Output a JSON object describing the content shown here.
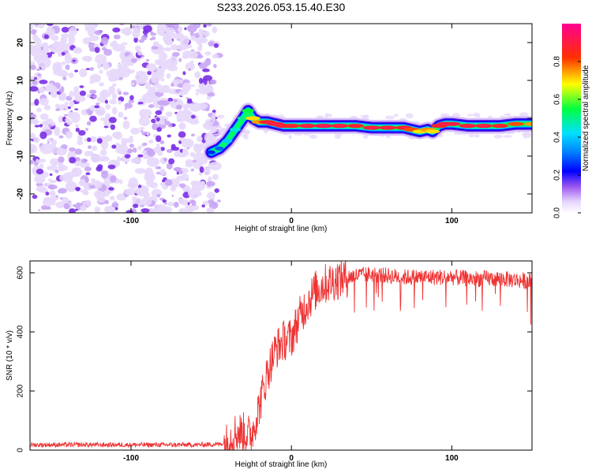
{
  "figure_title": "S233.2026.053.15.40.E30",
  "colors": {
    "jet_stops": [
      "#ffffff",
      "#f4e8ff",
      "#e0c6ff",
      "#c9a0ff",
      "#8a2be2",
      "#0000ff",
      "#00bfff",
      "#00ff00",
      "#ffff00",
      "#ff0000",
      "#ff00a0"
    ],
    "snr_line": "#ee3333",
    "axes": "#000000"
  },
  "chart_data": [
    {
      "type": "heatmap",
      "title": "",
      "xlabel": "Height of straight line (km)",
      "ylabel": "Frequency (Hz)",
      "xlim": [
        -163,
        150
      ],
      "ylim": [
        -25,
        25
      ],
      "xticks": [
        -100,
        0,
        100
      ],
      "yticks": [
        -20,
        -10,
        0,
        10,
        20
      ],
      "noise_region_x": [
        -163,
        -50
      ],
      "ridge": {
        "x": [
          -50,
          -45,
          -40,
          -35,
          -30,
          -27,
          -24,
          -20,
          -15,
          -10,
          -5,
          0,
          10,
          20,
          30,
          40,
          50,
          60,
          70,
          75,
          80,
          85,
          88,
          92,
          96,
          100,
          110,
          120,
          130,
          140,
          150
        ],
        "freq_hz": [
          -9,
          -8,
          -6,
          -3,
          0,
          2,
          0,
          -1,
          -1,
          -1.5,
          -2,
          -2,
          -2,
          -2,
          -2,
          -2,
          -2.5,
          -2.5,
          -2.5,
          -3,
          -3.5,
          -3,
          -3.5,
          -2,
          -1.5,
          -1.5,
          -2,
          -2,
          -2,
          -1.5,
          -1.5
        ],
        "amplitude": [
          0.25,
          0.3,
          0.4,
          0.45,
          0.5,
          0.55,
          0.7,
          0.75,
          0.85,
          0.9,
          0.9,
          0.85,
          0.9,
          0.95,
          0.9,
          0.85,
          0.9,
          0.9,
          0.85,
          0.8,
          0.7,
          0.75,
          0.7,
          0.85,
          0.9,
          0.9,
          0.9,
          0.9,
          0.85,
          0.8,
          0.75
        ]
      },
      "colorbar": {
        "label": "Normalized spectral amplitude",
        "range": [
          0,
          1
        ],
        "ticks": [
          0.0,
          0.2,
          0.4,
          0.6,
          0.8
        ],
        "tick_labels": [
          "0.0",
          "0.2",
          "0.4",
          "0.6",
          "0.8"
        ]
      }
    },
    {
      "type": "line",
      "title": "",
      "xlabel": "Height of straight line (km)",
      "ylabel": "SNR (10 * v/v)",
      "xlim": [
        -163,
        150
      ],
      "ylim": [
        0,
        640
      ],
      "xticks": [
        -100,
        0,
        100
      ],
      "yticks": [
        0,
        200,
        400,
        600
      ],
      "grid": false,
      "series": [
        {
          "name": "SNR",
          "x": [
            -163,
            -140,
            -120,
            -100,
            -80,
            -60,
            -45,
            -40,
            -35,
            -30,
            -25,
            -20,
            -15,
            -10,
            -5,
            0,
            5,
            10,
            15,
            20,
            25,
            30,
            40,
            50,
            60,
            70,
            80,
            90,
            100,
            110,
            120,
            130,
            140,
            150
          ],
          "values": [
            18,
            18,
            18,
            18,
            18,
            18,
            20,
            25,
            60,
            60,
            50,
            150,
            260,
            340,
            370,
            380,
            450,
            500,
            540,
            560,
            570,
            580,
            590,
            595,
            590,
            585,
            585,
            585,
            585,
            580,
            580,
            580,
            575,
            570
          ]
        }
      ]
    }
  ]
}
